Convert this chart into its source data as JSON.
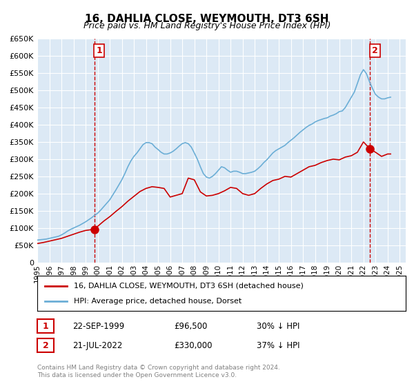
{
  "title": "16, DAHLIA CLOSE, WEYMOUTH, DT3 6SH",
  "subtitle": "Price paid vs. HM Land Registry's House Price Index (HPI)",
  "background_color": "#ffffff",
  "plot_bg_color": "#dce9f5",
  "grid_color": "#ffffff",
  "ylim": [
    0,
    650000
  ],
  "yticks": [
    0,
    50000,
    100000,
    150000,
    200000,
    250000,
    300000,
    350000,
    400000,
    450000,
    500000,
    550000,
    600000,
    650000
  ],
  "xlim_start": 1995.0,
  "xlim_end": 2025.5,
  "hpi_color": "#6baed6",
  "price_color": "#cc0000",
  "marker1_date": 1999.72,
  "marker1_price": 96500,
  "marker1_label": "1",
  "marker1_date_str": "22-SEP-1999",
  "marker1_price_str": "£96,500",
  "marker1_pct": "30% ↓ HPI",
  "marker2_date": 2022.54,
  "marker2_price": 330000,
  "marker2_label": "2",
  "marker2_date_str": "21-JUL-2022",
  "marker2_price_str": "£330,000",
  "marker2_pct": "37% ↓ HPI",
  "legend_line1": "16, DAHLIA CLOSE, WEYMOUTH, DT3 6SH (detached house)",
  "legend_line2": "HPI: Average price, detached house, Dorset",
  "footer1": "Contains HM Land Registry data © Crown copyright and database right 2024.",
  "footer2": "This data is licensed under the Open Government Licence v3.0.",
  "hpi_data_x": [
    1995.0,
    1995.25,
    1995.5,
    1995.75,
    1996.0,
    1996.25,
    1996.5,
    1996.75,
    1997.0,
    1997.25,
    1997.5,
    1997.75,
    1998.0,
    1998.25,
    1998.5,
    1998.75,
    1999.0,
    1999.25,
    1999.5,
    1999.75,
    2000.0,
    2000.25,
    2000.5,
    2000.75,
    2001.0,
    2001.25,
    2001.5,
    2001.75,
    2002.0,
    2002.25,
    2002.5,
    2002.75,
    2003.0,
    2003.25,
    2003.5,
    2003.75,
    2004.0,
    2004.25,
    2004.5,
    2004.75,
    2005.0,
    2005.25,
    2005.5,
    2005.75,
    2006.0,
    2006.25,
    2006.5,
    2006.75,
    2007.0,
    2007.25,
    2007.5,
    2007.75,
    2008.0,
    2008.25,
    2008.5,
    2008.75,
    2009.0,
    2009.25,
    2009.5,
    2009.75,
    2010.0,
    2010.25,
    2010.5,
    2010.75,
    2011.0,
    2011.25,
    2011.5,
    2011.75,
    2012.0,
    2012.25,
    2012.5,
    2012.75,
    2013.0,
    2013.25,
    2013.5,
    2013.75,
    2014.0,
    2014.25,
    2014.5,
    2014.75,
    2015.0,
    2015.25,
    2015.5,
    2015.75,
    2016.0,
    2016.25,
    2016.5,
    2016.75,
    2017.0,
    2017.25,
    2017.5,
    2017.75,
    2018.0,
    2018.25,
    2018.5,
    2018.75,
    2019.0,
    2019.25,
    2019.5,
    2019.75,
    2020.0,
    2020.25,
    2020.5,
    2020.75,
    2021.0,
    2021.25,
    2021.5,
    2021.75,
    2022.0,
    2022.25,
    2022.5,
    2022.75,
    2023.0,
    2023.25,
    2023.5,
    2023.75,
    2024.0,
    2024.25
  ],
  "hpi_data_y": [
    65000,
    66000,
    67000,
    68000,
    70000,
    72000,
    74000,
    76000,
    80000,
    85000,
    91000,
    96000,
    100000,
    104000,
    108000,
    113000,
    118000,
    124000,
    130000,
    137000,
    143000,
    152000,
    162000,
    172000,
    182000,
    196000,
    210000,
    225000,
    240000,
    258000,
    278000,
    295000,
    308000,
    318000,
    330000,
    342000,
    348000,
    348000,
    345000,
    335000,
    328000,
    320000,
    315000,
    315000,
    318000,
    323000,
    330000,
    338000,
    345000,
    348000,
    345000,
    335000,
    318000,
    300000,
    278000,
    258000,
    248000,
    245000,
    250000,
    258000,
    268000,
    278000,
    275000,
    268000,
    262000,
    265000,
    265000,
    262000,
    258000,
    258000,
    260000,
    262000,
    265000,
    272000,
    280000,
    290000,
    298000,
    308000,
    318000,
    325000,
    330000,
    335000,
    340000,
    348000,
    355000,
    362000,
    370000,
    378000,
    385000,
    392000,
    398000,
    402000,
    408000,
    412000,
    415000,
    418000,
    420000,
    425000,
    428000,
    432000,
    438000,
    440000,
    450000,
    465000,
    480000,
    495000,
    520000,
    545000,
    560000,
    548000,
    525000,
    505000,
    488000,
    480000,
    475000,
    475000,
    478000,
    480000
  ],
  "price_data_x": [
    1995.0,
    1995.5,
    1996.0,
    1996.5,
    1997.0,
    1997.5,
    1998.0,
    1998.5,
    1999.0,
    1999.72,
    2000.5,
    2001.0,
    2001.5,
    2002.0,
    2002.5,
    2003.0,
    2003.5,
    2004.0,
    2004.5,
    2005.0,
    2005.5,
    2006.0,
    2006.5,
    2007.0,
    2007.5,
    2008.0,
    2008.5,
    2009.0,
    2009.5,
    2010.0,
    2010.5,
    2011.0,
    2011.5,
    2012.0,
    2012.5,
    2013.0,
    2013.5,
    2014.0,
    2014.5,
    2015.0,
    2015.5,
    2016.0,
    2016.5,
    2017.0,
    2017.5,
    2018.0,
    2018.5,
    2019.0,
    2019.5,
    2020.0,
    2020.5,
    2021.0,
    2021.5,
    2022.0,
    2022.54,
    2023.0,
    2023.5,
    2024.0,
    2024.25
  ],
  "price_data_y": [
    55000,
    58000,
    62000,
    66000,
    70000,
    76000,
    82000,
    88000,
    93000,
    96500,
    120000,
    133000,
    148000,
    162000,
    178000,
    192000,
    206000,
    215000,
    220000,
    218000,
    215000,
    190000,
    195000,
    200000,
    245000,
    240000,
    205000,
    193000,
    195000,
    200000,
    208000,
    218000,
    215000,
    200000,
    195000,
    200000,
    215000,
    228000,
    238000,
    242000,
    250000,
    248000,
    258000,
    268000,
    278000,
    282000,
    290000,
    296000,
    300000,
    298000,
    306000,
    310000,
    320000,
    350000,
    330000,
    320000,
    308000,
    315000,
    315000
  ]
}
